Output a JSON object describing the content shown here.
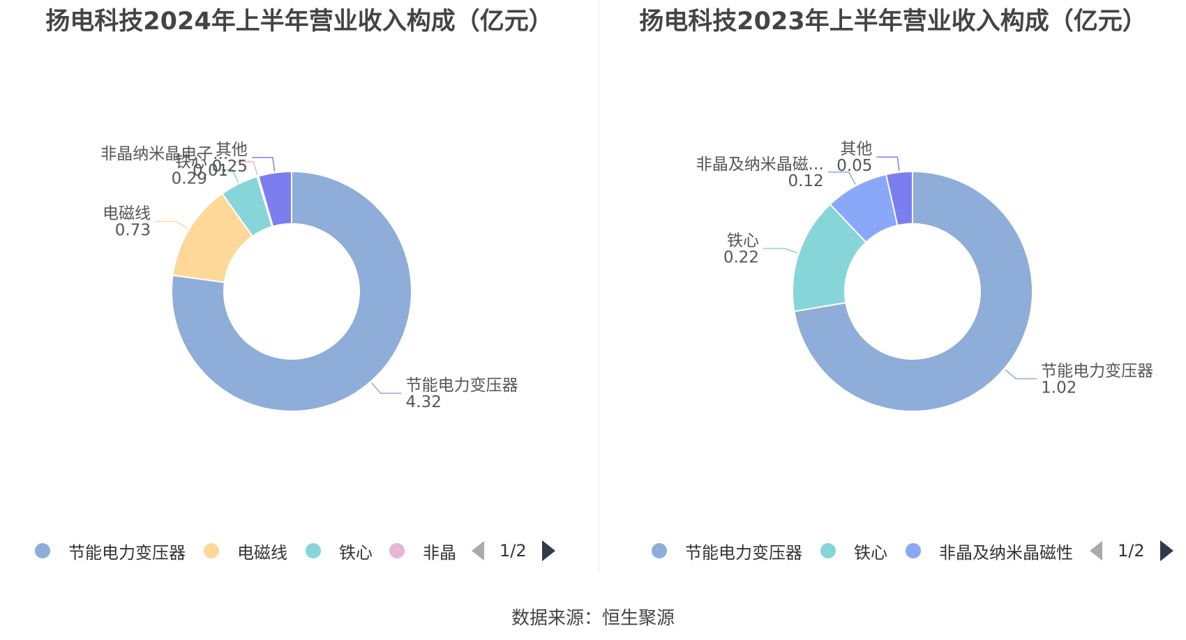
{
  "source_label": "数据来源：恒生聚源",
  "chart_data": [
    {
      "type": "pie",
      "donut": true,
      "title": "扬电科技2024年上半年营业收入构成（亿元）",
      "slices": [
        {
          "name": "节能电力变压器",
          "label": "节能电力变压器",
          "value": 4.32,
          "value_label": "4.32",
          "color": "#8eadd9"
        },
        {
          "name": "电磁线",
          "label": "电磁线",
          "value": 0.73,
          "value_label": "0.73",
          "color": "#fdd898"
        },
        {
          "name": "铁心",
          "label": "铁心",
          "value": 0.29,
          "value_label": "0.29",
          "color": "#86d5d8"
        },
        {
          "name": "非晶",
          "label": "非晶纳米晶电子...",
          "value": 0.01,
          "value_label": "0.01",
          "color": "#e6b5d7"
        },
        {
          "name": "其他",
          "label": "其他",
          "value": 0.25,
          "value_label": "0.25",
          "color": "#7c7ef0"
        }
      ],
      "legend": {
        "items": [
          "节能电力变压器",
          "电磁线",
          "铁心",
          "非晶"
        ],
        "page": "1/2"
      }
    },
    {
      "type": "pie",
      "donut": true,
      "title": "扬电科技2023年上半年营业收入构成（亿元）",
      "slices": [
        {
          "name": "节能电力变压器",
          "label": "节能电力变压器",
          "value": 1.02,
          "value_label": "1.02",
          "color": "#8eadd9"
        },
        {
          "name": "铁心",
          "label": "铁心",
          "value": 0.22,
          "value_label": "0.22",
          "color": "#86d5d8"
        },
        {
          "name": "非晶及纳米晶磁性",
          "label": "非晶及纳米晶磁...",
          "value": 0.12,
          "value_label": "0.12",
          "color": "#8aa8f8"
        },
        {
          "name": "其他",
          "label": "其他",
          "value": 0.05,
          "value_label": "0.05",
          "color": "#7c7ef0"
        }
      ],
      "legend": {
        "items": [
          "节能电力变压器",
          "铁心",
          "非晶及纳米晶磁性"
        ],
        "page": "1/2"
      }
    }
  ]
}
